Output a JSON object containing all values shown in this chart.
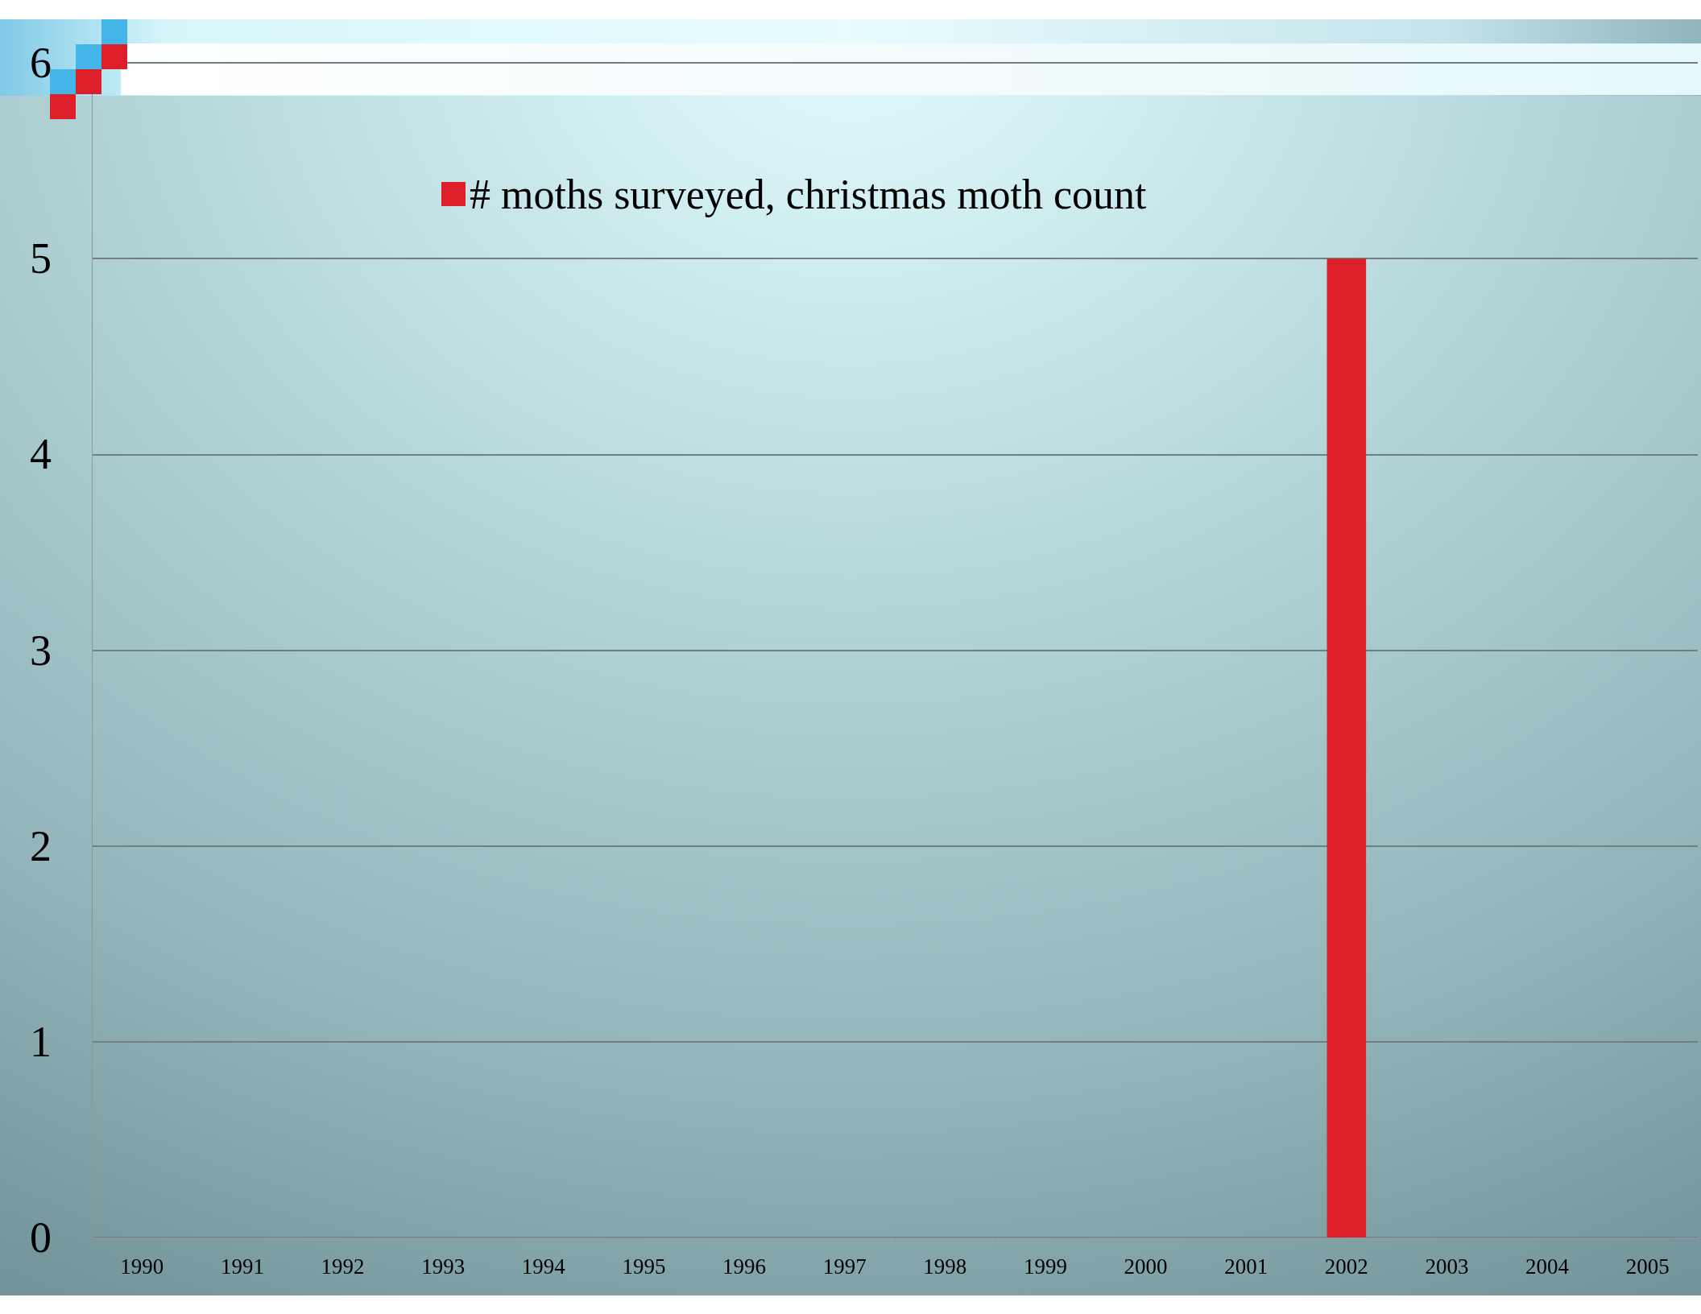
{
  "chart_data": {
    "type": "bar",
    "categories": [
      "1990",
      "1991",
      "1992",
      "1993",
      "1994",
      "1995",
      "1996",
      "1997",
      "1998",
      "1999",
      "2000",
      "2001",
      "2002",
      "2003",
      "2004",
      "2005"
    ],
    "series": [
      {
        "name": "# moths surveyed, christmas moth count",
        "color": "#dc1f29",
        "values": [
          0,
          0,
          0,
          0,
          0,
          0,
          0,
          0,
          0,
          0,
          0,
          0,
          5,
          0,
          0,
          0
        ]
      }
    ],
    "ylim": [
      0,
      6
    ],
    "yticks": [
      0,
      1,
      2,
      3,
      4,
      5,
      6
    ],
    "grid": "y",
    "legend": "top"
  }
}
